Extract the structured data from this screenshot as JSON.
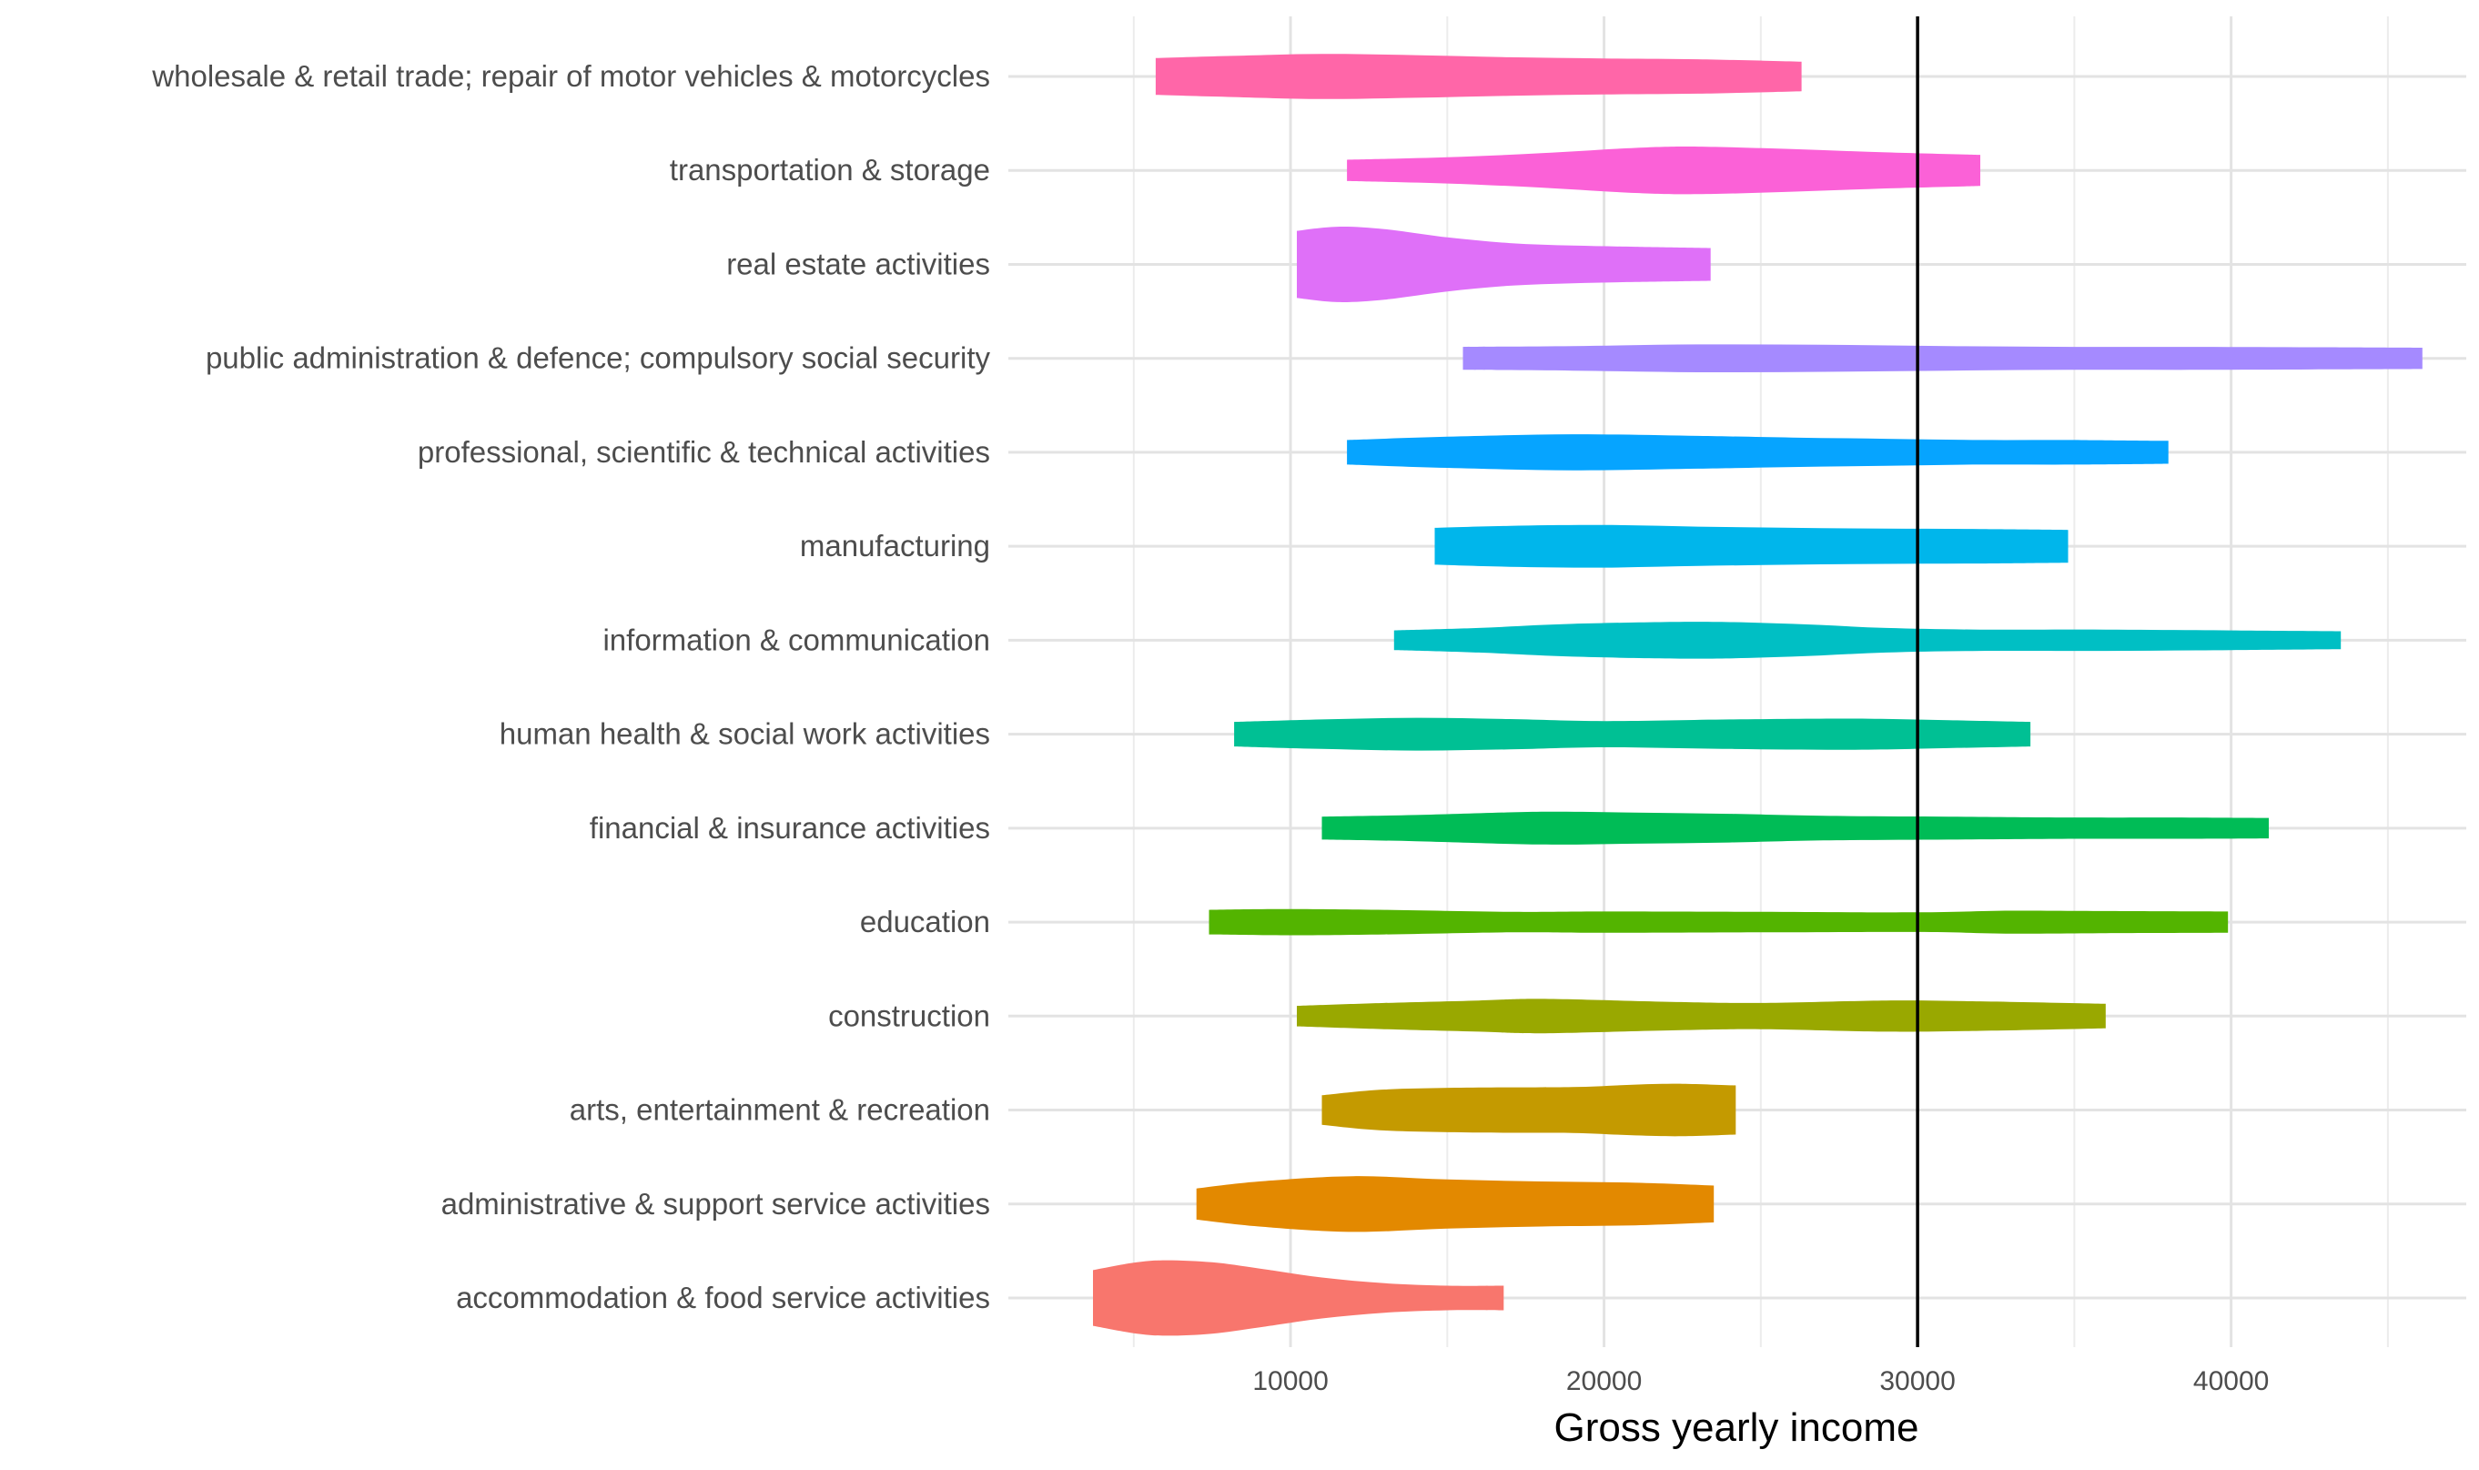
{
  "chart_data": {
    "type": "violin",
    "orientation": "horizontal",
    "title": "",
    "xlabel": "Gross yearly income",
    "ylabel": "",
    "xlim": [
      1000,
      47500
    ],
    "xticks": [
      10000,
      20000,
      30000,
      40000
    ],
    "xtick_labels": [
      "10000",
      "20000",
      "30000",
      "40000"
    ],
    "grid": true,
    "legend": "none",
    "reference_line": {
      "x": 30000,
      "color": "#000000"
    },
    "categories": [
      "accommodation & food service activities",
      "administrative & support service activities",
      "arts, entertainment & recreation",
      "construction",
      "education",
      "financial & insurance activities",
      "human health & social work activities",
      "information & communication",
      "manufacturing",
      "professional, scientific & technical activities",
      "public administration & defence; compulsory social security",
      "real estate activities",
      "transportation & storage",
      "wholesale & retail trade; repair of motor vehicles & motorcycles"
    ],
    "series": [
      {
        "category": "accommodation & food service activities",
        "color": "#F8766D",
        "profile": [
          [
            3700,
            0.68
          ],
          [
            5000,
            0.86
          ],
          [
            6000,
            0.92
          ],
          [
            7500,
            0.87
          ],
          [
            9000,
            0.72
          ],
          [
            11000,
            0.5
          ],
          [
            13000,
            0.36
          ],
          [
            15000,
            0.3
          ],
          [
            16800,
            0.3
          ]
        ]
      },
      {
        "category": "administrative & support service activities",
        "color": "#E38900",
        "profile": [
          [
            7000,
            0.38
          ],
          [
            9000,
            0.55
          ],
          [
            12000,
            0.68
          ],
          [
            15000,
            0.6
          ],
          [
            18000,
            0.55
          ],
          [
            21000,
            0.52
          ],
          [
            23500,
            0.45
          ]
        ]
      },
      {
        "category": "arts, entertainment & recreation",
        "color": "#C49A00",
        "profile": [
          [
            11000,
            0.36
          ],
          [
            13000,
            0.5
          ],
          [
            16000,
            0.55
          ],
          [
            19000,
            0.56
          ],
          [
            21000,
            0.62
          ],
          [
            22500,
            0.64
          ],
          [
            24200,
            0.6
          ]
        ]
      },
      {
        "category": "construction",
        "color": "#99A800",
        "profile": [
          [
            10200,
            0.25
          ],
          [
            13000,
            0.32
          ],
          [
            16000,
            0.38
          ],
          [
            18000,
            0.42
          ],
          [
            22000,
            0.35
          ],
          [
            25000,
            0.32
          ],
          [
            29000,
            0.38
          ],
          [
            32000,
            0.36
          ],
          [
            36000,
            0.3
          ]
        ]
      },
      {
        "category": "education",
        "color": "#53B400",
        "profile": [
          [
            7400,
            0.3
          ],
          [
            10000,
            0.32
          ],
          [
            13000,
            0.3
          ],
          [
            17000,
            0.25
          ],
          [
            20000,
            0.26
          ],
          [
            25000,
            0.25
          ],
          [
            30000,
            0.24
          ],
          [
            33000,
            0.28
          ],
          [
            36000,
            0.27
          ],
          [
            39900,
            0.26
          ]
        ]
      },
      {
        "category": "financial & insurance activities",
        "color": "#00BC56",
        "profile": [
          [
            11000,
            0.28
          ],
          [
            14000,
            0.32
          ],
          [
            18000,
            0.4
          ],
          [
            21000,
            0.38
          ],
          [
            24000,
            0.35
          ],
          [
            27000,
            0.3
          ],
          [
            31000,
            0.28
          ],
          [
            35000,
            0.26
          ],
          [
            38000,
            0.26
          ],
          [
            41200,
            0.25
          ]
        ]
      },
      {
        "category": "human health & social work activities",
        "color": "#00C094",
        "profile": [
          [
            8200,
            0.3
          ],
          [
            11000,
            0.36
          ],
          [
            14000,
            0.4
          ],
          [
            17000,
            0.37
          ],
          [
            20000,
            0.32
          ],
          [
            24000,
            0.36
          ],
          [
            28000,
            0.38
          ],
          [
            31000,
            0.34
          ],
          [
            33600,
            0.3
          ]
        ]
      },
      {
        "category": "information & communication",
        "color": "#00BFC4",
        "profile": [
          [
            13300,
            0.24
          ],
          [
            16000,
            0.3
          ],
          [
            19000,
            0.4
          ],
          [
            23000,
            0.45
          ],
          [
            26000,
            0.4
          ],
          [
            29000,
            0.3
          ],
          [
            32000,
            0.26
          ],
          [
            36000,
            0.26
          ],
          [
            40000,
            0.24
          ],
          [
            43500,
            0.22
          ]
        ]
      },
      {
        "category": "manufacturing",
        "color": "#00B6EB",
        "profile": [
          [
            14600,
            0.45
          ],
          [
            17000,
            0.5
          ],
          [
            20000,
            0.52
          ],
          [
            23000,
            0.48
          ],
          [
            26000,
            0.45
          ],
          [
            29000,
            0.43
          ],
          [
            32000,
            0.42
          ],
          [
            34800,
            0.4
          ]
        ]
      },
      {
        "category": "professional, scientific & technical activities",
        "color": "#06A4FF",
        "profile": [
          [
            11800,
            0.3
          ],
          [
            15000,
            0.38
          ],
          [
            19000,
            0.44
          ],
          [
            23000,
            0.4
          ],
          [
            26000,
            0.36
          ],
          [
            29000,
            0.33
          ],
          [
            32000,
            0.3
          ],
          [
            35000,
            0.3
          ],
          [
            38000,
            0.28
          ]
        ]
      },
      {
        "category": "public administration & defence; compulsory social security",
        "color": "#A58AFF",
        "profile": [
          [
            15500,
            0.28
          ],
          [
            19000,
            0.3
          ],
          [
            23000,
            0.34
          ],
          [
            27000,
            0.33
          ],
          [
            31000,
            0.3
          ],
          [
            35000,
            0.28
          ],
          [
            39000,
            0.28
          ],
          [
            43000,
            0.27
          ],
          [
            46100,
            0.26
          ]
        ]
      },
      {
        "category": "real estate activities",
        "color": "#DF70F8",
        "profile": [
          [
            10200,
            0.82
          ],
          [
            11500,
            0.92
          ],
          [
            13000,
            0.86
          ],
          [
            15000,
            0.66
          ],
          [
            17000,
            0.52
          ],
          [
            19000,
            0.46
          ],
          [
            21000,
            0.43
          ],
          [
            23400,
            0.4
          ]
        ]
      },
      {
        "category": "transportation & storage",
        "color": "#FB61D7",
        "profile": [
          [
            11800,
            0.26
          ],
          [
            15000,
            0.32
          ],
          [
            18000,
            0.42
          ],
          [
            21000,
            0.55
          ],
          [
            23000,
            0.58
          ],
          [
            26000,
            0.52
          ],
          [
            29000,
            0.44
          ],
          [
            32000,
            0.38
          ]
        ]
      },
      {
        "category": "wholesale & retail trade; repair of motor vehicles & motorcycles",
        "color": "#FF66A8",
        "profile": [
          [
            5700,
            0.45
          ],
          [
            8000,
            0.5
          ],
          [
            11000,
            0.55
          ],
          [
            14000,
            0.52
          ],
          [
            17000,
            0.47
          ],
          [
            20000,
            0.44
          ],
          [
            23000,
            0.42
          ],
          [
            26300,
            0.36
          ]
        ]
      }
    ]
  }
}
